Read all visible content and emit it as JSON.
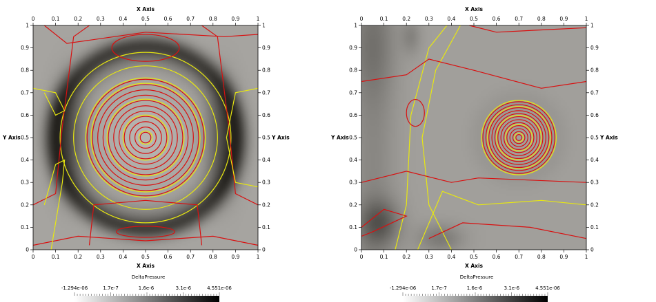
{
  "chart_data": [
    {
      "type": "heatmap",
      "subtype": "scalar field with contour lines",
      "xlabel": "X Axis",
      "ylabel": "Y Axis",
      "xlim": [
        0,
        1
      ],
      "ylim": [
        0,
        1
      ],
      "x_ticks": [
        "0",
        "0.1",
        "0.2",
        "0.3",
        "0.4",
        "0.5",
        "0.6",
        "0.7",
        "0.8",
        "0.9",
        "1"
      ],
      "y_ticks": [
        "0",
        "0.1",
        "0.2",
        "0.3",
        "0.4",
        "0.5",
        "0.6",
        "0.7",
        "0.8",
        "0.9",
        "1"
      ],
      "vortex_center": [
        0.5,
        0.5
      ],
      "contour_colors": [
        "#e8e810",
        "#d91010"
      ],
      "colorbar": {
        "title": "DeltaPressure",
        "tick_labels": [
          "-1.294e-06",
          "1.7e-7",
          "1.6e-6",
          "3.1e-6",
          "4.551e-06"
        ],
        "range": [
          -1.294e-06,
          4.551e-06
        ],
        "colormap": [
          "#ffffff",
          "#000000"
        ]
      }
    },
    {
      "type": "heatmap",
      "subtype": "scalar field with contour lines",
      "xlabel": "X Axis",
      "ylabel": "Y Axis",
      "xlim": [
        0,
        1
      ],
      "ylim": [
        0,
        1
      ],
      "x_ticks": [
        "0",
        "0.1",
        "0.2",
        "0.3",
        "0.4",
        "0.5",
        "0.6",
        "0.7",
        "0.8",
        "0.9",
        "1"
      ],
      "y_ticks": [
        "0",
        "0.1",
        "0.2",
        "0.3",
        "0.4",
        "0.5",
        "0.6",
        "0.7",
        "0.8",
        "0.9",
        "1"
      ],
      "vortex_center": [
        0.7,
        0.5
      ],
      "contour_colors": [
        "#e8e810",
        "#d91010"
      ],
      "colorbar": {
        "title": "DeltaPressure",
        "tick_labels": [
          "-1.294e-06",
          "1.7e-7",
          "1.6e-6",
          "3.1e-6",
          "4.551e-06"
        ],
        "range": [
          -1.294e-06,
          4.551e-06
        ],
        "colormap": [
          "#ffffff",
          "#000000"
        ]
      }
    }
  ]
}
